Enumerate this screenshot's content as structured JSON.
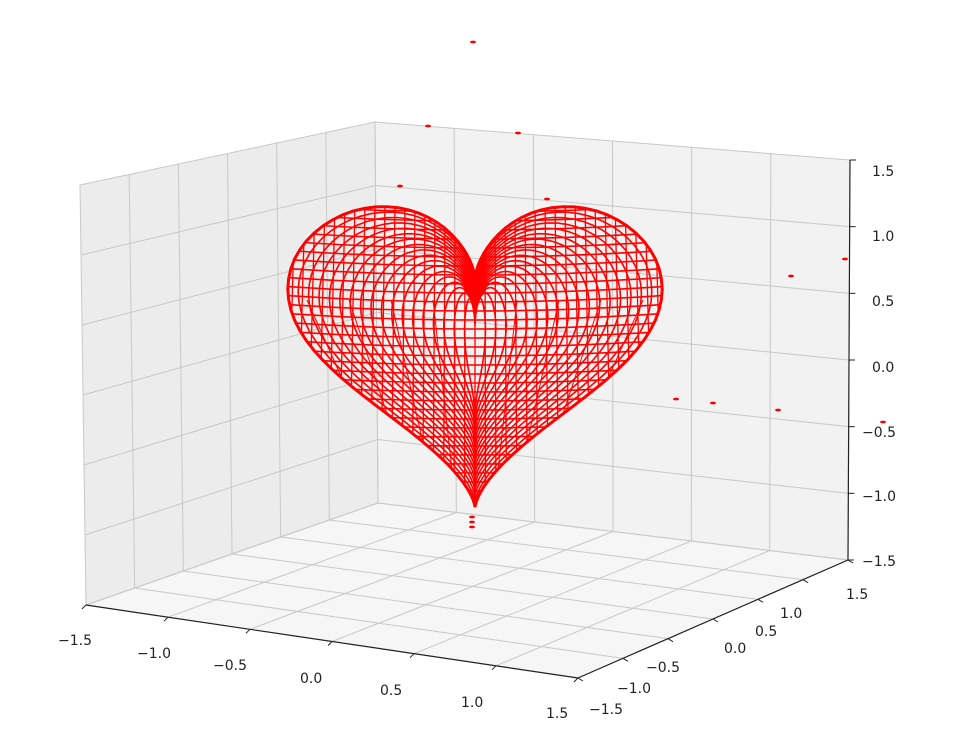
{
  "chart_data": {
    "type": "3d-wireframe",
    "title": "",
    "xlabel": "",
    "ylabel": "",
    "zlabel": "",
    "xlim": [
      -1.5,
      1.5
    ],
    "ylim": [
      -1.5,
      1.5
    ],
    "zlim": [
      -1.5,
      1.5
    ],
    "x_ticks": [
      "−1.5",
      "−1.0",
      "−0.5",
      "0.0",
      "0.5",
      "1.0",
      "1.5"
    ],
    "y_ticks": [
      "−1.5",
      "−1.0",
      "−0.5",
      "0.0",
      "0.5",
      "1.0",
      "1.5"
    ],
    "z_ticks": [
      "−1.5",
      "−1.0",
      "−0.5",
      "0.0",
      "0.5",
      "1.0",
      "1.5"
    ],
    "surface": "heart",
    "color": "#ff0000",
    "pane_color": "#f2f2f2",
    "grid": true
  }
}
